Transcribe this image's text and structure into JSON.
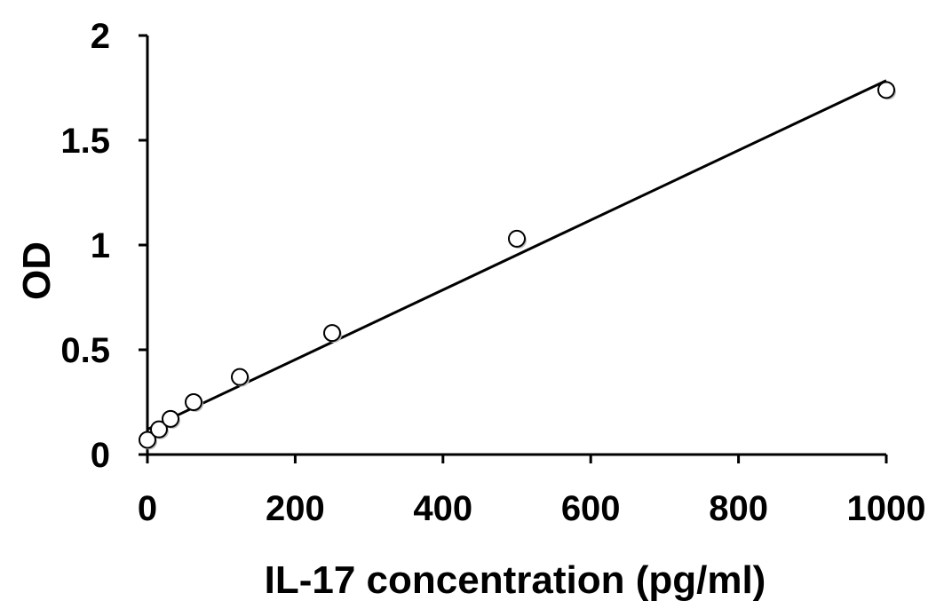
{
  "chart_data": {
    "type": "scatter",
    "title": "",
    "xlabel": "IL-17 concentration (pg/ml)",
    "ylabel": "OD",
    "xlim": [
      0,
      1000
    ],
    "ylim": [
      0,
      2
    ],
    "x_ticks": [
      "0",
      "200",
      "400",
      "600",
      "800",
      "1000"
    ],
    "y_ticks": [
      "0",
      "0.5",
      "1",
      "1.5",
      "2"
    ],
    "grid": false,
    "legend": "none",
    "series": [
      {
        "x": [
          0,
          15.6,
          31.25,
          62.5,
          125,
          250,
          500,
          1000
        ],
        "y": [
          0.07,
          0.12,
          0.17,
          0.25,
          0.37,
          0.58,
          1.03,
          1.74
        ]
      }
    ],
    "trendline": {
      "type": "linear",
      "x": [
        0,
        1000
      ],
      "y": [
        0.12,
        1.785
      ]
    },
    "colors": {
      "axis": "#000000",
      "marker_fill": "#ffffff",
      "marker_stroke": "#000000",
      "line": "#000000"
    }
  }
}
